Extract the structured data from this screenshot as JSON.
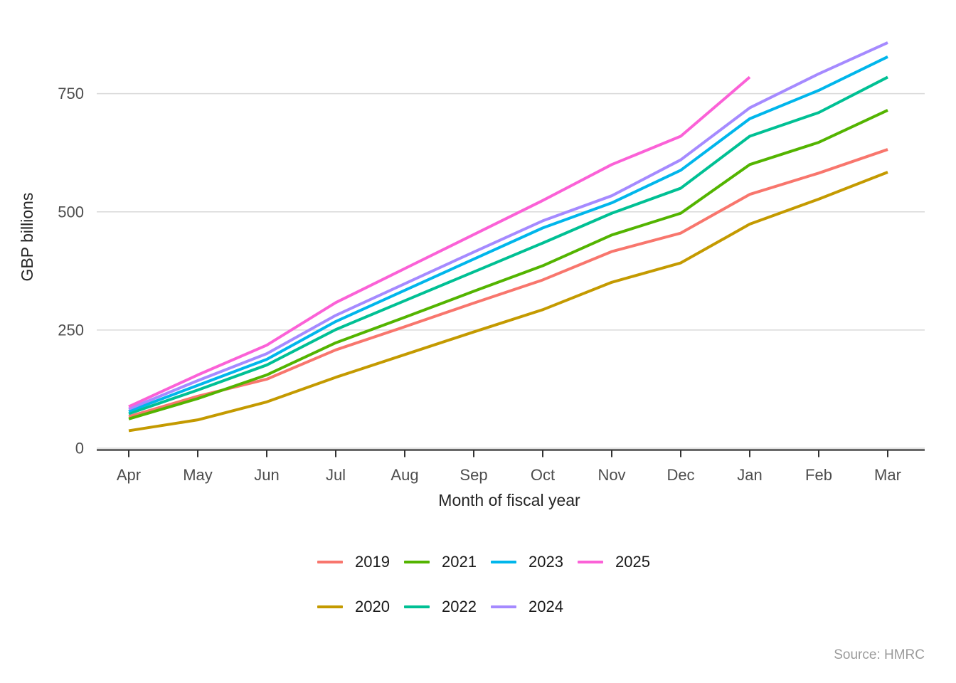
{
  "chart_data": {
    "type": "line",
    "title": "",
    "xlabel": "Month of fiscal year",
    "ylabel": "GBP billions",
    "source": "Source: HMRC",
    "categories": [
      "Apr",
      "May",
      "Jun",
      "Jul",
      "Aug",
      "Sep",
      "Oct",
      "Nov",
      "Dec",
      "Jan",
      "Feb",
      "Mar"
    ],
    "yticks": [
      0,
      250,
      500,
      750
    ],
    "ylim": [
      0,
      900
    ],
    "grid": "horizontal-only",
    "legend_position": "bottom",
    "legend_rows": [
      [
        "2019",
        "2021",
        "2023",
        "2025"
      ],
      [
        "2020",
        "2022",
        "2024"
      ]
    ],
    "series": [
      {
        "name": "2019",
        "color": "#F8766D",
        "values": [
          67,
          110,
          146,
          208,
          257,
          307,
          356,
          416,
          455,
          537,
          582,
          632
        ]
      },
      {
        "name": "2020",
        "color": "#C49A00",
        "values": [
          37,
          60,
          98,
          150,
          198,
          246,
          293,
          351,
          392,
          474,
          527,
          584
        ]
      },
      {
        "name": "2021",
        "color": "#53B400",
        "values": [
          62,
          105,
          155,
          223,
          277,
          332,
          386,
          451,
          497,
          600,
          647,
          715
        ]
      },
      {
        "name": "2022",
        "color": "#00C094",
        "values": [
          73,
          123,
          176,
          251,
          312,
          373,
          434,
          497,
          550,
          660,
          710,
          785
        ]
      },
      {
        "name": "2023",
        "color": "#00B6EB",
        "values": [
          78,
          133,
          188,
          268,
          334,
          400,
          466,
          519,
          588,
          697,
          757,
          828
        ]
      },
      {
        "name": "2024",
        "color": "#A58AFF",
        "values": [
          83,
          143,
          200,
          281,
          348,
          415,
          481,
          534,
          610,
          720,
          792,
          858
        ]
      },
      {
        "name": "2025",
        "color": "#FB61D7",
        "values": [
          88,
          155,
          218,
          308,
          380,
          452,
          524,
          600,
          660,
          785
        ]
      }
    ],
    "colors": {
      "gridline": "#D9D9D9",
      "axis_line": "#333333",
      "tick_text": "#4D4D4D",
      "axis_title": "#262626"
    }
  }
}
